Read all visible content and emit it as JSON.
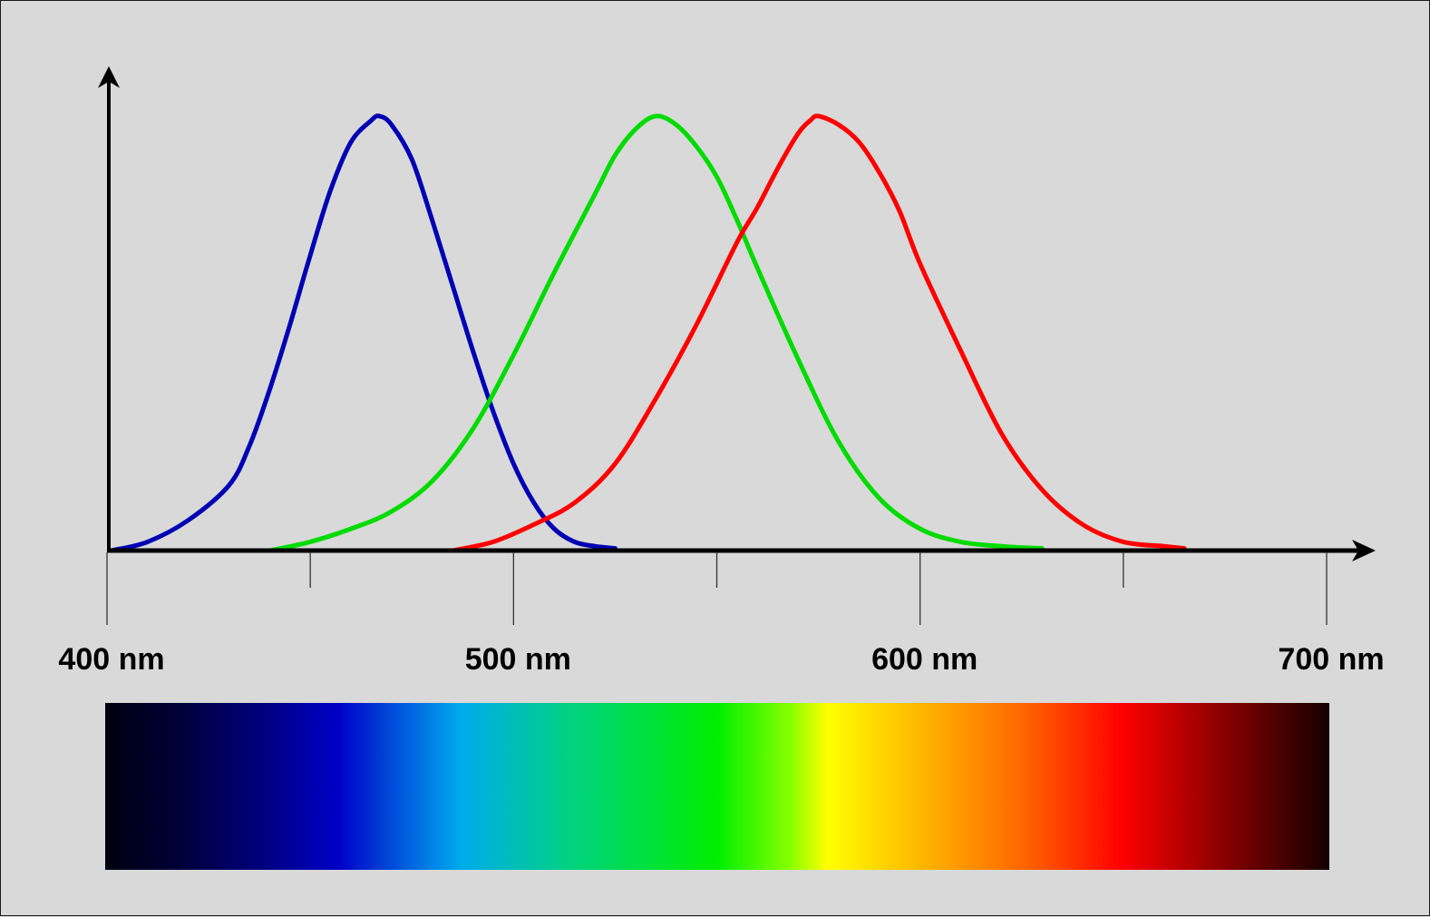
{
  "chart_data": {
    "type": "line",
    "title": "",
    "xlabel": "",
    "ylabel": "",
    "xlim": [
      400,
      700
    ],
    "ylim": [
      0,
      1
    ],
    "x_ticks": [
      400,
      450,
      500,
      550,
      600,
      650,
      700
    ],
    "x_tick_labels": [
      {
        "value": 400,
        "label": "400 nm"
      },
      {
        "value": 500,
        "label": "500 nm"
      },
      {
        "value": 600,
        "label": "600 nm"
      },
      {
        "value": 700,
        "label": "700 nm"
      }
    ],
    "grid": false,
    "legend": "none",
    "series": [
      {
        "color": "#0000b4",
        "points": [
          [
            401,
            0
          ],
          [
            410,
            0.02
          ],
          [
            420,
            0.07
          ],
          [
            430,
            0.15
          ],
          [
            435,
            0.24
          ],
          [
            440,
            0.37
          ],
          [
            445,
            0.52
          ],
          [
            450,
            0.68
          ],
          [
            455,
            0.83
          ],
          [
            460,
            0.94
          ],
          [
            465,
            0.99
          ],
          [
            467,
            1.0
          ],
          [
            470,
            0.98
          ],
          [
            475,
            0.9
          ],
          [
            480,
            0.76
          ],
          [
            485,
            0.61
          ],
          [
            490,
            0.46
          ],
          [
            495,
            0.32
          ],
          [
            500,
            0.2
          ],
          [
            505,
            0.11
          ],
          [
            510,
            0.05
          ],
          [
            515,
            0.02
          ],
          [
            520,
            0.01
          ],
          [
            525,
            0.005
          ]
        ]
      },
      {
        "color": "#00dc00",
        "points": [
          [
            440,
            0
          ],
          [
            450,
            0.02
          ],
          [
            460,
            0.05
          ],
          [
            470,
            0.09
          ],
          [
            480,
            0.16
          ],
          [
            490,
            0.28
          ],
          [
            500,
            0.45
          ],
          [
            510,
            0.64
          ],
          [
            520,
            0.82
          ],
          [
            525,
            0.91
          ],
          [
            530,
            0.97
          ],
          [
            535,
            1.0
          ],
          [
            540,
            0.98
          ],
          [
            545,
            0.93
          ],
          [
            550,
            0.86
          ],
          [
            555,
            0.76
          ],
          [
            560,
            0.65
          ],
          [
            570,
            0.44
          ],
          [
            580,
            0.25
          ],
          [
            590,
            0.12
          ],
          [
            600,
            0.05
          ],
          [
            610,
            0.02
          ],
          [
            620,
            0.01
          ],
          [
            630,
            0.005
          ]
        ]
      },
      {
        "color": "#ff0000",
        "points": [
          [
            485,
            0
          ],
          [
            495,
            0.02
          ],
          [
            505,
            0.06
          ],
          [
            515,
            0.11
          ],
          [
            525,
            0.2
          ],
          [
            535,
            0.35
          ],
          [
            545,
            0.52
          ],
          [
            555,
            0.71
          ],
          [
            560,
            0.79
          ],
          [
            565,
            0.88
          ],
          [
            570,
            0.96
          ],
          [
            573,
            0.99
          ],
          [
            575,
            1.0
          ],
          [
            580,
            0.98
          ],
          [
            585,
            0.94
          ],
          [
            590,
            0.87
          ],
          [
            595,
            0.78
          ],
          [
            600,
            0.66
          ],
          [
            610,
            0.46
          ],
          [
            620,
            0.27
          ],
          [
            630,
            0.14
          ],
          [
            640,
            0.06
          ],
          [
            650,
            0.02
          ],
          [
            660,
            0.01
          ],
          [
            665,
            0.005
          ]
        ]
      }
    ]
  },
  "colors": {
    "background": "#d9d9d9",
    "axis": "#000000",
    "spectrum": [
      {
        "offset": 0.0,
        "color": "#000010"
      },
      {
        "offset": 0.06,
        "color": "#000038"
      },
      {
        "offset": 0.13,
        "color": "#000080"
      },
      {
        "offset": 0.19,
        "color": "#0000c8"
      },
      {
        "offset": 0.29,
        "color": "#00aaee"
      },
      {
        "offset": 0.38,
        "color": "#00d280"
      },
      {
        "offset": 0.5,
        "color": "#00ee00"
      },
      {
        "offset": 0.56,
        "color": "#88ff00"
      },
      {
        "offset": 0.59,
        "color": "#ffff00"
      },
      {
        "offset": 0.68,
        "color": "#ffaa00"
      },
      {
        "offset": 0.75,
        "color": "#ff6600"
      },
      {
        "offset": 0.83,
        "color": "#ff0000"
      },
      {
        "offset": 0.92,
        "color": "#800000"
      },
      {
        "offset": 1.0,
        "color": "#140000"
      }
    ]
  }
}
